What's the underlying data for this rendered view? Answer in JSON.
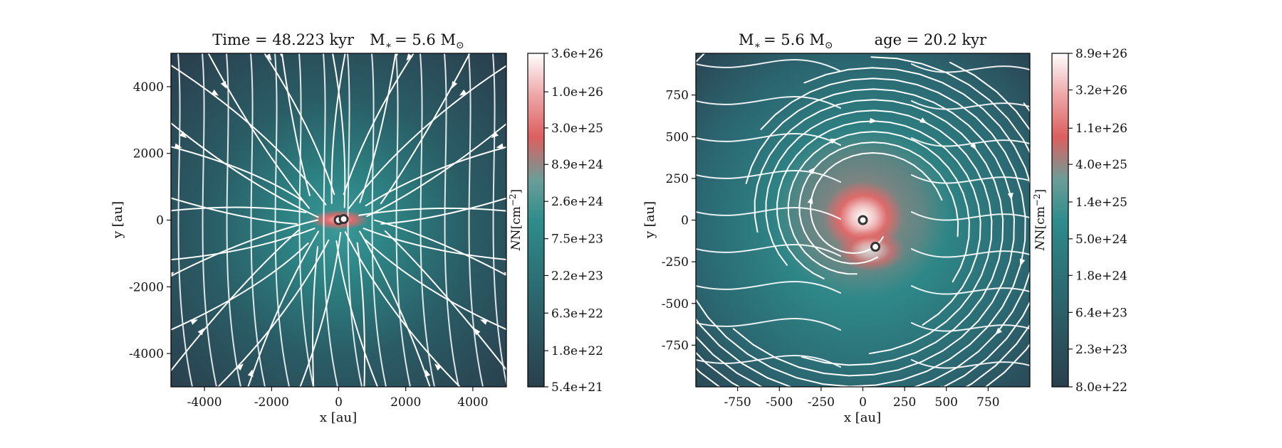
{
  "chart_data": [
    {
      "type": "heatmap",
      "title": "Time = 48.223 kyr    M$_*$ = 5.6 M$_\\odot$",
      "title_text": "Time = 48.223 kyr",
      "title_mass": "M",
      "title_mass_sub": "∗",
      "title_mass_eq": "= 5.6 M",
      "title_mass_sun": "⊙",
      "xlabel": "x [au]",
      "ylabel": "y [au]",
      "xlim": [
        -5000,
        5000
      ],
      "ylim": [
        -5000,
        5000
      ],
      "xticks": [
        -4000,
        -2000,
        0,
        2000,
        4000
      ],
      "xtick_labels": [
        "-4000",
        "-2000",
        "0",
        "2000",
        "4000"
      ],
      "yticks": [
        -4000,
        -2000,
        0,
        2000,
        4000
      ],
      "ytick_labels": [
        "-4000",
        "-2000",
        "0",
        "2000",
        "4000"
      ],
      "colorbar": {
        "label": "N[cm",
        "label_sup": "−2",
        "label_end": "]",
        "scale": "log",
        "range": [
          5.4e+21,
          3.6e+26
        ],
        "tick_labels": [
          "5.4e+21",
          "1.8e+22",
          "6.3e+22",
          "2.2e+23",
          "7.5e+23",
          "2.6e+24",
          "8.9e+24",
          "3.0e+25",
          "1.0e+26",
          "3.6e+26"
        ]
      },
      "sinks": [
        {
          "x": 0,
          "y": 0
        },
        {
          "x": 150,
          "y": 30
        }
      ],
      "overlay": "magnetic field streamlines (white, arrowed)"
    },
    {
      "type": "heatmap",
      "title_mass": "M",
      "title_mass_sub": "∗",
      "title_mass_eq": "= 5.6 M",
      "title_mass_sun": "⊙",
      "title_age": "age = 20.2 kyr",
      "xlabel": "x [au]",
      "ylabel": "y [au]",
      "xlim": [
        -1000,
        1000
      ],
      "ylim": [
        -1000,
        1000
      ],
      "xticks": [
        -750,
        -500,
        -250,
        0,
        250,
        500,
        750
      ],
      "xtick_labels": [
        "-750",
        "-500",
        "-250",
        "0",
        "250",
        "500",
        "750"
      ],
      "yticks": [
        -750,
        -500,
        -250,
        0,
        250,
        500,
        750
      ],
      "ytick_labels": [
        "-750",
        "-500",
        "-250",
        "0",
        "250",
        "500",
        "750"
      ],
      "colorbar": {
        "label": "N[cm",
        "label_sup": "−2",
        "label_end": "]",
        "scale": "log",
        "range": [
          8e+22,
          8.9e+26
        ],
        "tick_labels": [
          "8.0e+22",
          "2.3e+23",
          "6.4e+23",
          "1.8e+24",
          "5.0e+24",
          "1.4e+25",
          "4.0e+25",
          "1.1e+26",
          "3.2e+26",
          "8.9e+26"
        ]
      },
      "sinks": [
        {
          "x": 0,
          "y": 0
        },
        {
          "x": 75,
          "y": -160
        }
      ],
      "overlay": "magnetic field streamlines (white, arrowed)"
    }
  ],
  "colors": {
    "cmap_low": "#2a3f4d",
    "cmap_mid": "#2f8c8c",
    "cmap_peak": "#dd5f5f",
    "cmap_high": "#ffffff",
    "streamline": "#ffffff",
    "sink_fill": "#ffffff",
    "sink_stroke": "#333333"
  }
}
